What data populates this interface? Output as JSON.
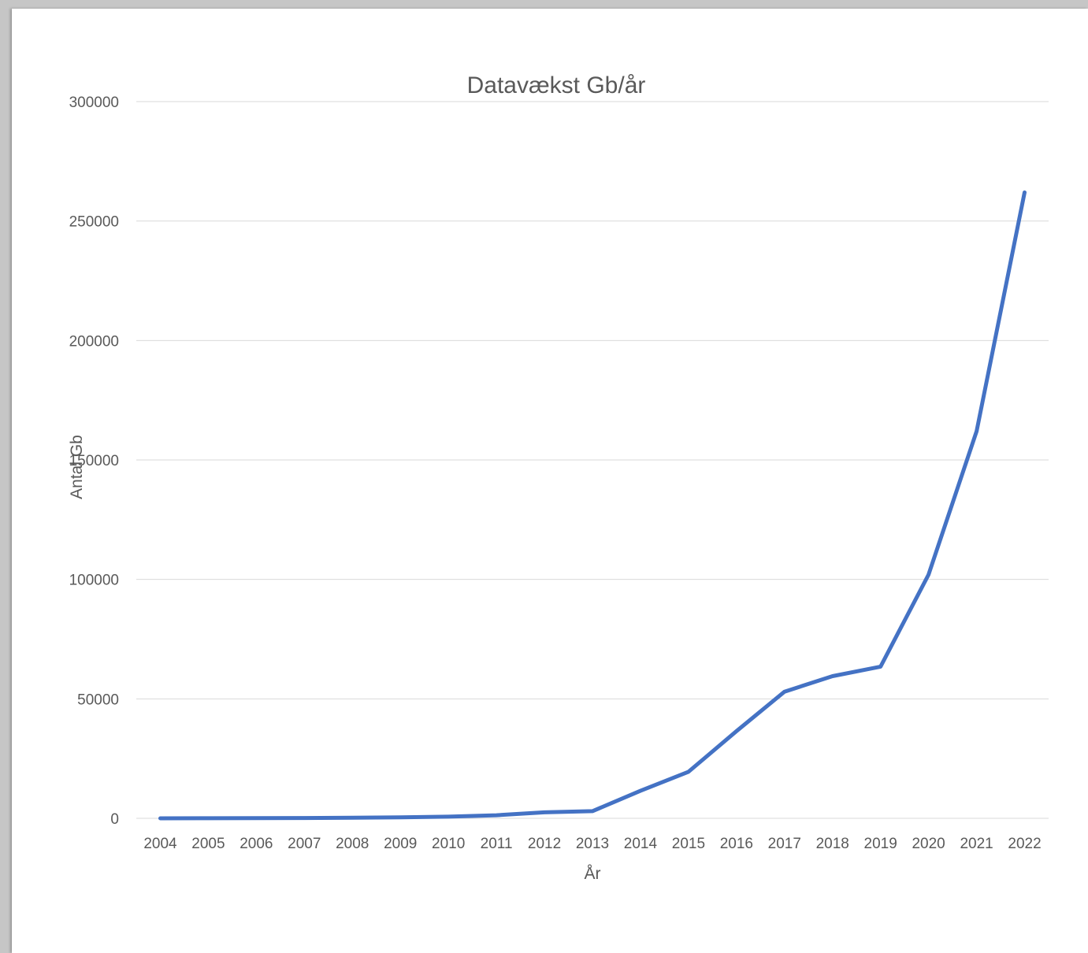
{
  "chart_data": {
    "type": "line",
    "title": "Datavækst Gb/år",
    "xlabel": "År",
    "ylabel": "Antal Gb",
    "ylim": [
      0,
      300000
    ],
    "yticks": [
      0,
      50000,
      100000,
      150000,
      200000,
      250000,
      300000
    ],
    "ytick_labels": [
      "0",
      "50000",
      "100000",
      "150000",
      "200000",
      "250000",
      "300000"
    ],
    "grid": true,
    "legend": "none",
    "categories": [
      "2004",
      "2005",
      "2006",
      "2007",
      "2008",
      "2009",
      "2010",
      "2011",
      "2012",
      "2013",
      "2014",
      "2015",
      "2016",
      "2017",
      "2018",
      "2019",
      "2020",
      "2021",
      "2022"
    ],
    "series": [
      {
        "color": "#4472c4",
        "values": [
          0,
          30,
          60,
          120,
          250,
          400,
          700,
          1300,
          2500,
          3000,
          11500,
          19500,
          36500,
          53000,
          59500,
          63500,
          102000,
          162000,
          262000
        ]
      }
    ]
  }
}
